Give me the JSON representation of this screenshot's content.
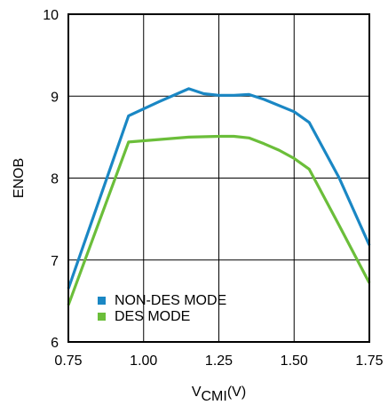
{
  "chart_data": {
    "type": "line",
    "title": "",
    "xlabel": {
      "main": "V",
      "sub": "CMI",
      "suffix": "(V)"
    },
    "ylabel": "ENOB",
    "xlim": [
      0.75,
      1.75
    ],
    "ylim": [
      6,
      10
    ],
    "grid": true,
    "legend_position": "bottom-left",
    "x_ticks": [
      0.75,
      1.0,
      1.25,
      1.5,
      1.75
    ],
    "x_tick_labels": [
      "0.75",
      "1.00",
      "1.25",
      "1.50",
      "1.75"
    ],
    "y_ticks": [
      6,
      7,
      8,
      9,
      10
    ],
    "y_tick_labels": [
      "6",
      "7",
      "8",
      "9",
      "10"
    ],
    "series": [
      {
        "name": "NON-DES MODE",
        "color": "#1a87c4",
        "x": [
          0.75,
          0.95,
          1.05,
          1.15,
          1.2,
          1.25,
          1.3,
          1.35,
          1.4,
          1.5,
          1.55,
          1.65,
          1.75
        ],
        "y": [
          6.65,
          8.76,
          8.93,
          9.09,
          9.03,
          9.01,
          9.01,
          9.02,
          8.96,
          8.81,
          8.68,
          8.0,
          7.18
        ]
      },
      {
        "name": "DES MODE",
        "color": "#6bbe3a",
        "x": [
          0.75,
          0.95,
          1.05,
          1.15,
          1.25,
          1.3,
          1.35,
          1.4,
          1.45,
          1.5,
          1.55,
          1.65,
          1.75
        ],
        "y": [
          6.45,
          8.44,
          8.47,
          8.5,
          8.51,
          8.51,
          8.49,
          8.42,
          8.34,
          8.24,
          8.11,
          7.42,
          6.72
        ]
      }
    ]
  }
}
